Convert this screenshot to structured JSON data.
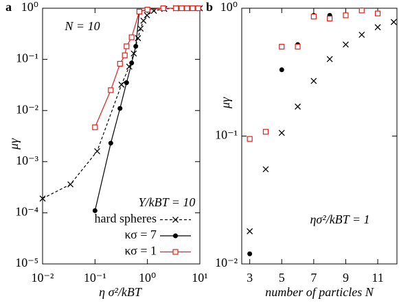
{
  "chart_data": [
    {
      "type": "line",
      "panel_label": "a",
      "xlabel": "η σ²/kBT",
      "ylabel": "μγ",
      "xscale": "log",
      "yscale": "log",
      "xlim": [
        0.01,
        10
      ],
      "ylim": [
        1e-05,
        1
      ],
      "xticks": [
        {
          "value": 0.01,
          "label": "10⁻²"
        },
        {
          "value": 0.1,
          "label": "10⁻¹"
        },
        {
          "value": 1,
          "label": "10⁰"
        },
        {
          "value": 10,
          "label": "10¹"
        }
      ],
      "yticks": [
        {
          "value": 1e-05,
          "label": "10⁻⁵"
        },
        {
          "value": 0.0001,
          "label": "10⁻⁴"
        },
        {
          "value": 0.001,
          "label": "10⁻³"
        },
        {
          "value": 0.01,
          "label": "10⁻²"
        },
        {
          "value": 0.1,
          "label": "10⁻¹"
        },
        {
          "value": 1,
          "label": "10⁰"
        }
      ],
      "annotations": [
        "N = 10"
      ],
      "legend_title": "Y/kBT = 10",
      "series": [
        {
          "name": "hard spheres",
          "color": "#000000",
          "marker": "x",
          "dash": true,
          "x": [
            0.01,
            0.034,
            0.11,
            0.32,
            0.45,
            0.55,
            0.66,
            0.74,
            0.84,
            0.98,
            1.33,
            2.1,
            3.5,
            5.7,
            10
          ],
          "values": [
            0.00019,
            0.00036,
            0.0016,
            0.032,
            0.072,
            0.13,
            0.26,
            0.4,
            0.57,
            0.73,
            0.89,
            0.97,
            1,
            1,
            1
          ]
        },
        {
          "name": "κσ = 7",
          "color": "#000000",
          "marker": "dot",
          "dash": false,
          "x": [
            0.1,
            0.2,
            0.3,
            0.4,
            0.5,
            0.6,
            0.7,
            1,
            2
          ],
          "values": [
            0.00011,
            0.0023,
            0.011,
            0.035,
            0.085,
            0.18,
            0.86,
            0.94,
            1
          ]
        },
        {
          "name": "κσ = 1",
          "color": "#e0201c",
          "marker": "square",
          "dash": false,
          "x": [
            0.1,
            0.2,
            0.3,
            0.37,
            0.4,
            0.5,
            0.7,
            1,
            2,
            3.5,
            4.5,
            5.7,
            7.3,
            9.3
          ],
          "values": [
            0.0047,
            0.025,
            0.082,
            0.12,
            0.18,
            0.27,
            0.86,
            0.94,
            1,
            1,
            1,
            1,
            1,
            1
          ]
        }
      ]
    },
    {
      "type": "scatter",
      "panel_label": "b",
      "xlabel": "number of particles N",
      "ylabel": "μγ",
      "yscale": "log",
      "xlim": [
        2.5,
        12.2
      ],
      "ylim": [
        0.01,
        1
      ],
      "xticks": [
        3,
        5,
        7,
        9,
        11
      ],
      "yticks": [
        {
          "value": 0.01,
          "label": "10⁻²"
        },
        {
          "value": 0.1,
          "label": "10⁻¹"
        },
        {
          "value": 1,
          "label": "10⁰"
        }
      ],
      "annotations": [
        "ησ²/kBT = 1"
      ],
      "series": [
        {
          "color": "#000000",
          "marker": "x",
          "x": [
            3,
            4,
            5,
            6,
            7,
            8,
            9,
            10,
            11,
            12
          ],
          "values": [
            0.018,
            0.055,
            0.106,
            0.17,
            0.27,
            0.4,
            0.52,
            0.62,
            0.71,
            0.78
          ]
        },
        {
          "color": "#000000",
          "marker": "dot",
          "x": [
            3,
            5,
            6,
            7,
            8,
            9,
            10,
            11
          ],
          "values": [
            0.012,
            0.33,
            0.52,
            0.88,
            0.88,
            0.88,
            0.97,
            0.91
          ]
        },
        {
          "color": "#e0201c",
          "marker": "square",
          "x": [
            3,
            4,
            5,
            6,
            7,
            8,
            9,
            10,
            11
          ],
          "values": [
            0.095,
            0.108,
            0.5,
            0.5,
            0.86,
            0.83,
            0.88,
            0.96,
            0.91
          ]
        }
      ]
    }
  ]
}
